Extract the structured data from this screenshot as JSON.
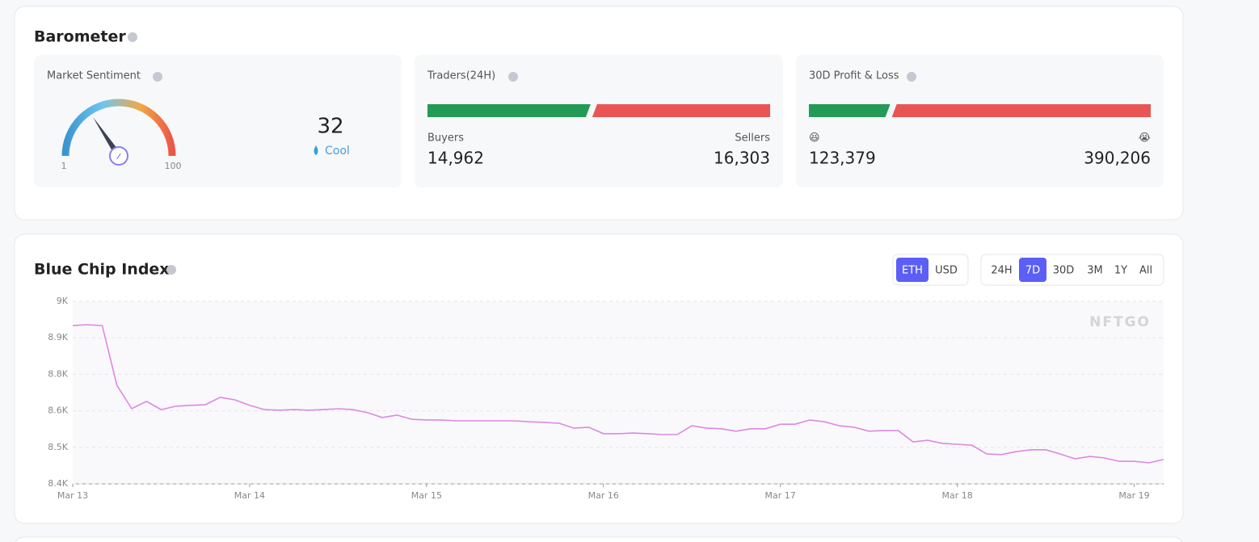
{
  "barometer": {
    "title": "Barometer",
    "sentiment": {
      "label": "Market Sentiment",
      "value": 32,
      "status": "Cool",
      "ticks": [
        1,
        100
      ]
    },
    "traders": {
      "label": "Traders(24H)",
      "categories": [
        "Buyers",
        "Sellers"
      ],
      "values": [
        14962,
        16303
      ],
      "value_labels": [
        "14,962",
        "16,303"
      ]
    },
    "pnl": {
      "label": "30D Profit & Loss",
      "categories": [
        "😆",
        "😭"
      ],
      "values": [
        123379,
        390206
      ],
      "value_labels": [
        "123,379",
        "390,206"
      ]
    }
  },
  "chart_data": {
    "type": "line",
    "title": "Blue Chip Index",
    "color": "#dd88e0",
    "grid": true,
    "watermark": "NFTGO",
    "currency_options": [
      "ETH",
      "USD"
    ],
    "currency_active": 0,
    "range_options": [
      "24H",
      "7D",
      "30D",
      "3M",
      "1Y",
      "All"
    ],
    "range_active": 1,
    "xlim": [
      0,
      148
    ],
    "xticks": [
      {
        "value": 0,
        "label": "Mar 13"
      },
      {
        "value": 24,
        "label": "Mar 14"
      },
      {
        "value": 48,
        "label": "Mar 15"
      },
      {
        "value": 72,
        "label": "Mar 16"
      },
      {
        "value": 96,
        "label": "Mar 17"
      },
      {
        "value": 120,
        "label": "Mar 18"
      },
      {
        "value": 144,
        "label": "Mar 19"
      }
    ],
    "ylim": [
      8400,
      9000
    ],
    "yticks": [
      {
        "value": 8400,
        "label": "8.4K"
      },
      {
        "value": 8520,
        "label": "8.5K"
      },
      {
        "value": 8640,
        "label": "8.6K"
      },
      {
        "value": 8760,
        "label": "8.8K"
      },
      {
        "value": 8880,
        "label": "8.9K"
      },
      {
        "value": 9000,
        "label": "9K"
      }
    ],
    "x": [
      0,
      2,
      4,
      6,
      8,
      10,
      12,
      14,
      16,
      18,
      20,
      22,
      24,
      26,
      28,
      30,
      32,
      34,
      36,
      38,
      40,
      42,
      44,
      46,
      48,
      50,
      52,
      54,
      56,
      58,
      60,
      62,
      64,
      66,
      68,
      70,
      72,
      74,
      76,
      78,
      80,
      82,
      84,
      86,
      88,
      90,
      92,
      94,
      96,
      98,
      100,
      102,
      104,
      106,
      108,
      110,
      112,
      114,
      116,
      118,
      120,
      122,
      124,
      126,
      128,
      130,
      132,
      134,
      136,
      138,
      140,
      142,
      144,
      146,
      148
    ],
    "values": [
      8920,
      8923,
      8920,
      8724,
      8647,
      8671,
      8644,
      8655,
      8658,
      8660,
      8684,
      8676,
      8658,
      8644,
      8642,
      8644,
      8642,
      8644,
      8647,
      8644,
      8634,
      8618,
      8626,
      8612,
      8610,
      8610,
      8607,
      8607,
      8607,
      8607,
      8607,
      8604,
      8602,
      8599,
      8583,
      8586,
      8565,
      8565,
      8567,
      8565,
      8562,
      8562,
      8591,
      8583,
      8581,
      8573,
      8581,
      8581,
      8596,
      8596,
      8610,
      8604,
      8591,
      8586,
      8573,
      8575,
      8575,
      8538,
      8543,
      8533,
      8530,
      8527,
      8498,
      8496,
      8506,
      8512,
      8512,
      8498,
      8482,
      8490,
      8485,
      8474,
      8474,
      8469,
      8480
    ]
  }
}
